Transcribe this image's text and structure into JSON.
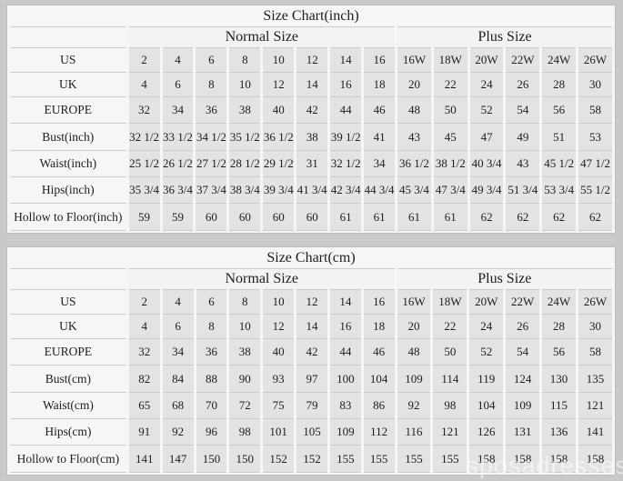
{
  "page": {
    "watermark": "sposadresses"
  },
  "colors": {
    "page_background": "#c9c9c9",
    "table_background": "#f6f6f6",
    "data_cell_background": "#e3e3e3",
    "grid_line": "#cbcbcb",
    "text": "#1d1d1d",
    "watermark_color": "#ffffff"
  },
  "chart_data": [
    {
      "type": "table",
      "title": "Size Chart(inch)",
      "column_groups": [
        {
          "label": "Normal Size",
          "span": 8
        },
        {
          "label": "Plus Size",
          "span": 6
        }
      ],
      "rows": [
        {
          "label": "US",
          "normal": [
            "2",
            "4",
            "6",
            "8",
            "10",
            "12",
            "14",
            "16"
          ],
          "plus": [
            "16W",
            "18W",
            "20W",
            "22W",
            "24W",
            "26W"
          ]
        },
        {
          "label": "UK",
          "normal": [
            "4",
            "6",
            "8",
            "10",
            "12",
            "14",
            "16",
            "18"
          ],
          "plus": [
            "20",
            "22",
            "24",
            "26",
            "28",
            "30"
          ]
        },
        {
          "label": "EUROPE",
          "normal": [
            "32",
            "34",
            "36",
            "38",
            "40",
            "42",
            "44",
            "46"
          ],
          "plus": [
            "48",
            "50",
            "52",
            "54",
            "56",
            "58"
          ]
        },
        {
          "label": "Bust(inch)",
          "normal": [
            "32 1/2",
            "33 1/2",
            "34 1/2",
            "35 1/2",
            "36 1/2",
            "38",
            "39 1/2",
            "41"
          ],
          "plus": [
            "43",
            "45",
            "47",
            "49",
            "51",
            "53"
          ]
        },
        {
          "label": "Waist(inch)",
          "normal": [
            "25 1/2",
            "26 1/2",
            "27 1/2",
            "28 1/2",
            "29 1/2",
            "31",
            "32 1/2",
            "34"
          ],
          "plus": [
            "36 1/2",
            "38 1/2",
            "40 3/4",
            "43",
            "45 1/2",
            "47 1/2"
          ]
        },
        {
          "label": "Hips(inch)",
          "normal": [
            "35 3/4",
            "36 3/4",
            "37 3/4",
            "38 3/4",
            "39 3/4",
            "41 3/4",
            "42 3/4",
            "44 3/4"
          ],
          "plus": [
            "45 3/4",
            "47 3/4",
            "49 3/4",
            "51 3/4",
            "53 3/4",
            "55 1/2"
          ]
        },
        {
          "label": "Hollow to Floor(inch)",
          "normal": [
            "59",
            "59",
            "60",
            "60",
            "60",
            "60",
            "61",
            "61"
          ],
          "plus": [
            "61",
            "61",
            "62",
            "62",
            "62",
            "62"
          ]
        }
      ]
    },
    {
      "type": "table",
      "title": "Size Chart(cm)",
      "column_groups": [
        {
          "label": "Normal Size",
          "span": 8
        },
        {
          "label": "Plus Size",
          "span": 6
        }
      ],
      "rows": [
        {
          "label": "US",
          "normal": [
            "2",
            "4",
            "6",
            "8",
            "10",
            "12",
            "14",
            "16"
          ],
          "plus": [
            "16W",
            "18W",
            "20W",
            "22W",
            "24W",
            "26W"
          ]
        },
        {
          "label": "UK",
          "normal": [
            "4",
            "6",
            "8",
            "10",
            "12",
            "14",
            "16",
            "18"
          ],
          "plus": [
            "20",
            "22",
            "24",
            "26",
            "28",
            "30"
          ]
        },
        {
          "label": "EUROPE",
          "normal": [
            "32",
            "34",
            "36",
            "38",
            "40",
            "42",
            "44",
            "46"
          ],
          "plus": [
            "48",
            "50",
            "52",
            "54",
            "56",
            "58"
          ]
        },
        {
          "label": "Bust(cm)",
          "normal": [
            "82",
            "84",
            "88",
            "90",
            "93",
            "97",
            "100",
            "104"
          ],
          "plus": [
            "109",
            "114",
            "119",
            "124",
            "130",
            "135"
          ]
        },
        {
          "label": "Waist(cm)",
          "normal": [
            "65",
            "68",
            "70",
            "72",
            "75",
            "79",
            "83",
            "86"
          ],
          "plus": [
            "92",
            "98",
            "104",
            "109",
            "115",
            "121"
          ]
        },
        {
          "label": "Hips(cm)",
          "normal": [
            "91",
            "92",
            "96",
            "98",
            "101",
            "105",
            "109",
            "112"
          ],
          "plus": [
            "116",
            "121",
            "126",
            "131",
            "136",
            "141"
          ]
        },
        {
          "label": "Hollow to Floor(cm)",
          "normal": [
            "141",
            "147",
            "150",
            "150",
            "152",
            "152",
            "155",
            "155"
          ],
          "plus": [
            "155",
            "155",
            "158",
            "158",
            "158",
            "158"
          ]
        }
      ]
    }
  ]
}
